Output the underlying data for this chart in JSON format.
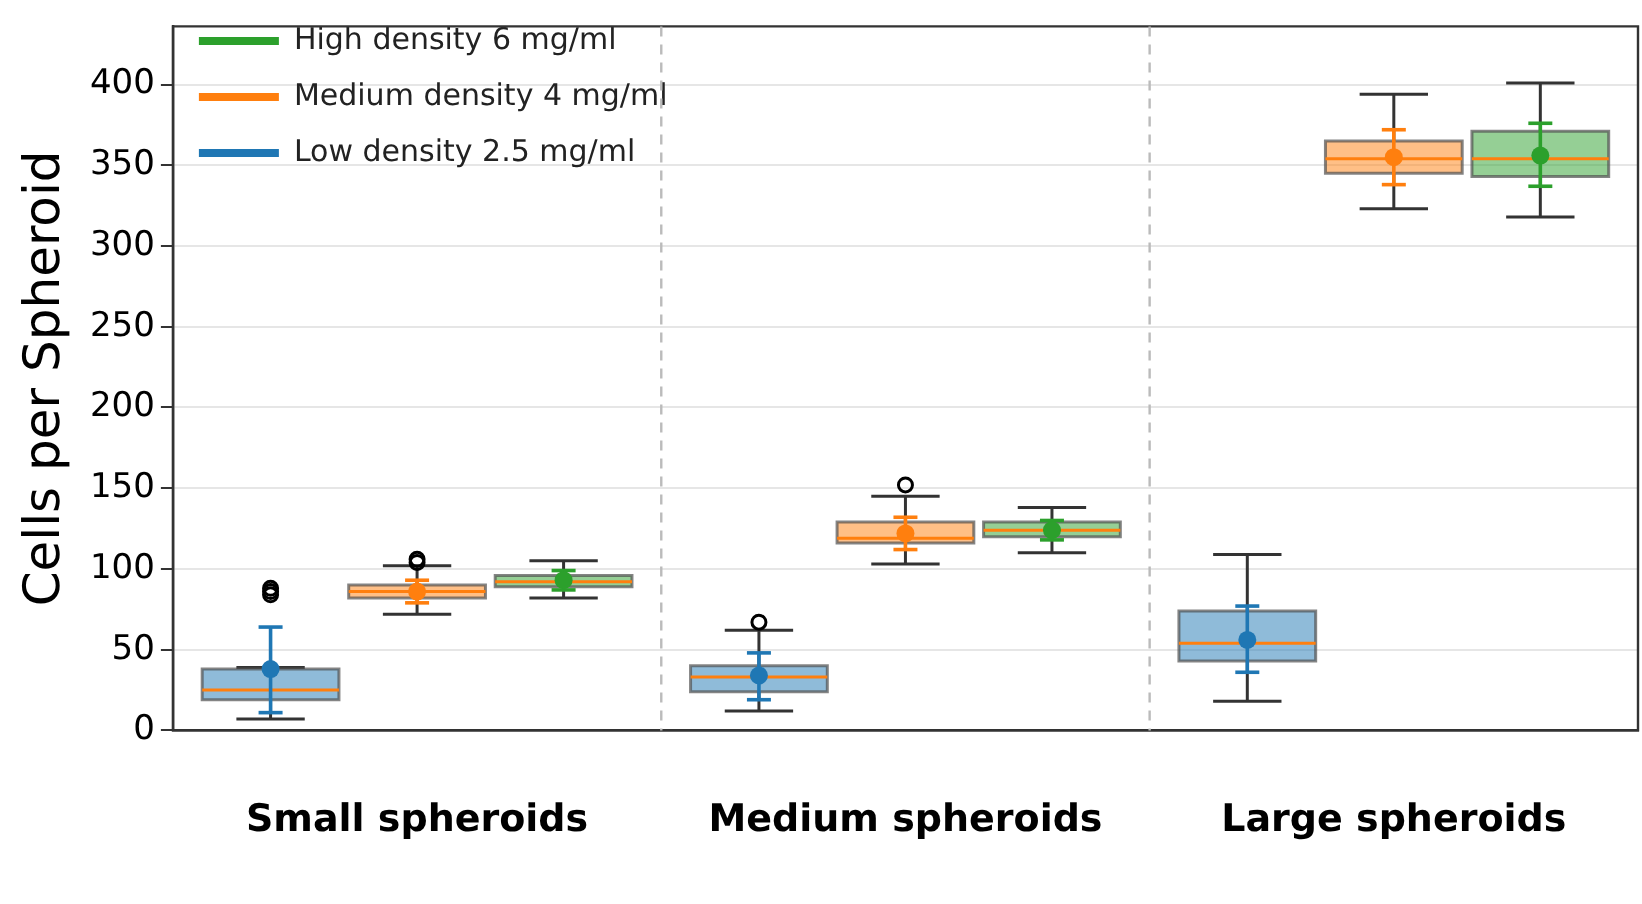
{
  "chart_data": {
    "type": "box",
    "ylabel": "Cells per Spheroid",
    "categories": [
      "Small spheroids",
      "Medium spheroids",
      "Large spheroids"
    ],
    "ylim": [
      0,
      436
    ],
    "yticks": [
      0,
      50,
      100,
      150,
      200,
      250,
      300,
      350,
      400
    ],
    "grid": true,
    "legend": "top left",
    "series": [
      {
        "name": "Low density 2.5 mg/ml",
        "color": "#1f77b4",
        "boxes": [
          {
            "low": 7,
            "q1": 19,
            "median": 25,
            "q3": 38,
            "high": 39,
            "outliers": [
              84,
              86,
              88
            ]
          },
          {
            "low": 12,
            "q1": 24,
            "median": 33,
            "q3": 40,
            "high": 62,
            "outliers": [
              67
            ]
          },
          {
            "low": 18,
            "q1": 43,
            "median": 54,
            "q3": 74,
            "high": 109
          }
        ]
      },
      {
        "name": "Medium density 4 mg/ml",
        "color": "#ff7f0e",
        "boxes": [
          {
            "low": 72,
            "q1": 82,
            "median": 86,
            "q3": 90,
            "high": 102,
            "outliers": [
              104,
              106
            ]
          },
          {
            "low": 103,
            "q1": 116,
            "median": 119,
            "q3": 129,
            "high": 145,
            "outliers": [
              152
            ]
          },
          {
            "low": 323,
            "q1": 345,
            "median": 354,
            "q3": 365,
            "high": 394
          }
        ]
      },
      {
        "name": "High density 6 mg/ml",
        "color": "#2ca02c",
        "boxes": [
          {
            "low": 82,
            "q1": 89,
            "median": 92,
            "q3": 96,
            "high": 105
          },
          {
            "low": 110,
            "q1": 120,
            "median": 124,
            "q3": 129,
            "high": 138
          },
          {
            "low": 318,
            "q1": 343,
            "median": 354,
            "q3": 371,
            "high": 401
          }
        ]
      },
      {
        "type": "scatter",
        "color": "#1f77b4",
        "x": [
          "Small spheroids",
          "Medium spheroids",
          "Large spheroids"
        ],
        "values": [
          38,
          34,
          56
        ],
        "errors": [
          [
            11,
            64
          ],
          [
            19,
            48
          ],
          [
            36,
            77
          ]
        ]
      },
      {
        "type": "scatter",
        "color": "#ff7f0e",
        "x": [
          "Small spheroids",
          "Medium spheroids",
          "Large spheroids"
        ],
        "values": [
          86,
          122,
          355
        ],
        "errors": [
          [
            79,
            93
          ],
          [
            112,
            132
          ],
          [
            338,
            372
          ]
        ]
      },
      {
        "type": "scatter",
        "color": "#2ca02c",
        "x": [
          "Small spheroids",
          "Medium spheroids",
          "Large spheroids"
        ],
        "values": [
          93,
          124,
          356
        ],
        "errors": [
          [
            87,
            99
          ],
          [
            118,
            130
          ],
          [
            337,
            376
          ]
        ]
      }
    ]
  }
}
